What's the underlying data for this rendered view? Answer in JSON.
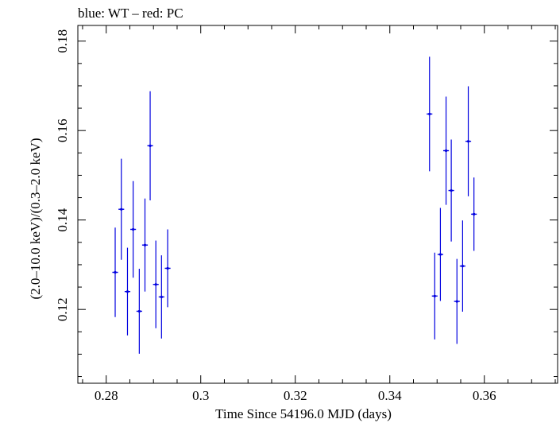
{
  "chart_data": {
    "type": "scatter",
    "title": "blue: WT – red: PC",
    "xlabel": "Time Since 54196.0 MJD (days)",
    "ylabel": "(2.0–10.0 keV)/(0.3–2.0 keV)",
    "xlim": [
      0.274,
      0.3755
    ],
    "ylim": [
      0.1035,
      0.1835
    ],
    "x_ticks": [
      0.28,
      0.3,
      0.32,
      0.34,
      0.36
    ],
    "x_tick_labels": [
      "0.28",
      "0.3",
      "0.32",
      "0.34",
      "0.36"
    ],
    "y_ticks": [
      0.12,
      0.14,
      0.16,
      0.18
    ],
    "y_tick_labels": [
      "0.12",
      "0.14",
      "0.16",
      "0.18"
    ],
    "grid": false,
    "legend": "none",
    "colors": {
      "WT": "#0000e0",
      "axis": "#000000"
    },
    "series": [
      {
        "name": "WT",
        "color": "#0000e0",
        "x_err": 0.0006,
        "points": [
          {
            "x": 0.2819,
            "y": 0.1283,
            "yerr": 0.01
          },
          {
            "x": 0.2832,
            "y": 0.1424,
            "yerr": 0.0113
          },
          {
            "x": 0.2845,
            "y": 0.124,
            "yerr": 0.0098
          },
          {
            "x": 0.2857,
            "y": 0.1379,
            "yerr": 0.0108
          },
          {
            "x": 0.287,
            "y": 0.1196,
            "yerr": 0.0095
          },
          {
            "x": 0.2882,
            "y": 0.1344,
            "yerr": 0.0104
          },
          {
            "x": 0.2893,
            "y": 0.1566,
            "yerr": 0.0122
          },
          {
            "x": 0.2905,
            "y": 0.1256,
            "yerr": 0.0098
          },
          {
            "x": 0.2917,
            "y": 0.1228,
            "yerr": 0.0093
          },
          {
            "x": 0.293,
            "y": 0.1292,
            "yerr": 0.0087
          },
          {
            "x": 0.3484,
            "y": 0.1637,
            "yerr": 0.0128
          },
          {
            "x": 0.3495,
            "y": 0.123,
            "yerr": 0.0097
          },
          {
            "x": 0.3507,
            "y": 0.1323,
            "yerr": 0.0104
          },
          {
            "x": 0.3519,
            "y": 0.1555,
            "yerr": 0.0121
          },
          {
            "x": 0.353,
            "y": 0.1466,
            "yerr": 0.0114
          },
          {
            "x": 0.3542,
            "y": 0.1218,
            "yerr": 0.0095
          },
          {
            "x": 0.3554,
            "y": 0.1297,
            "yerr": 0.0102
          },
          {
            "x": 0.3566,
            "y": 0.1576,
            "yerr": 0.0123
          },
          {
            "x": 0.3578,
            "y": 0.1413,
            "yerr": 0.0082
          }
        ]
      }
    ]
  }
}
